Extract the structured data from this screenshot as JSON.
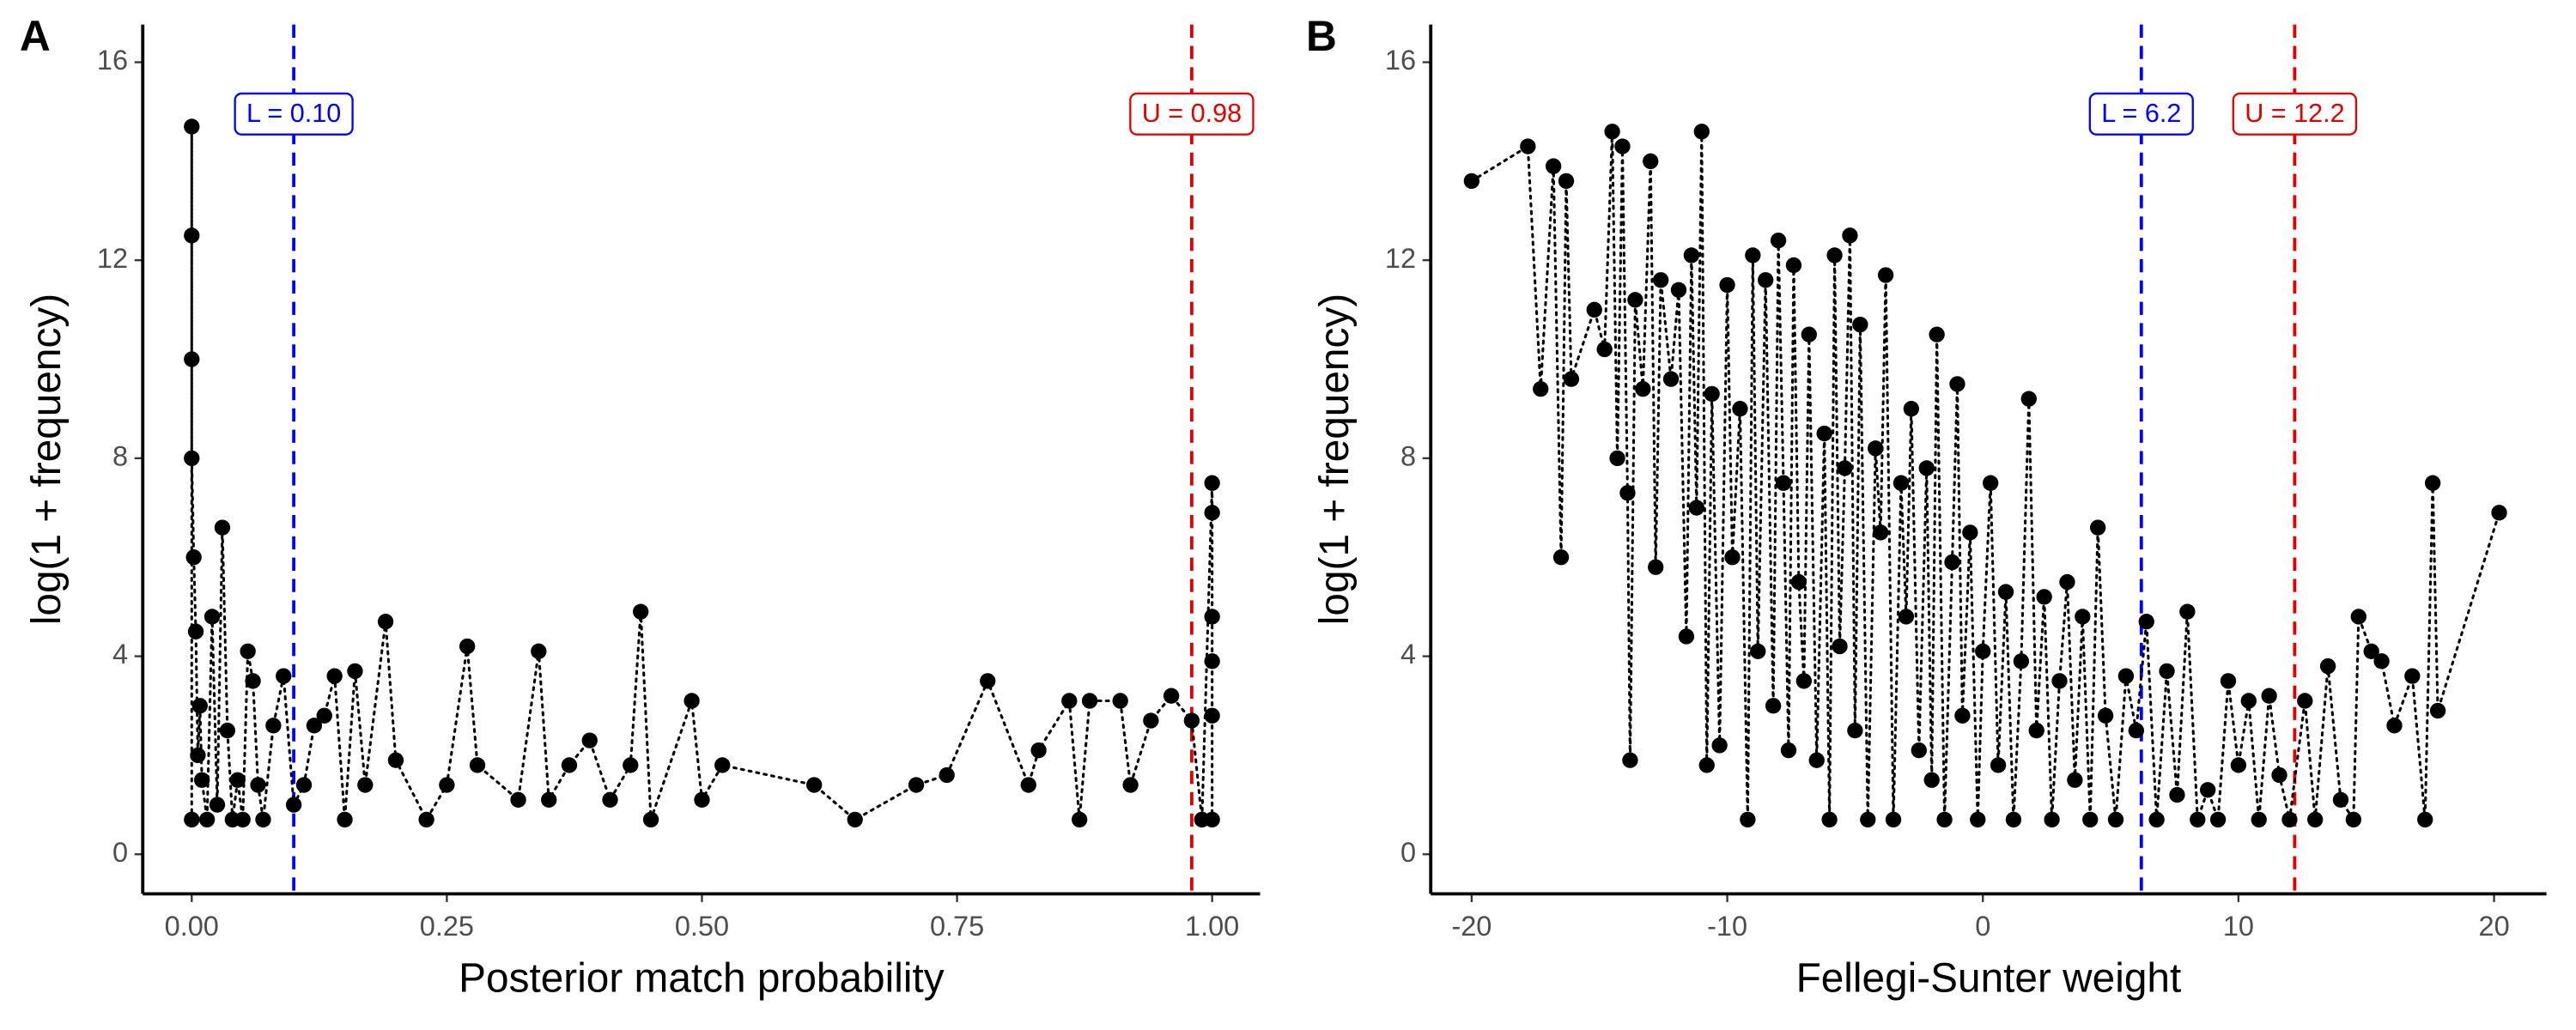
{
  "chart_data": [
    {
      "type": "scatter",
      "panel_label": "A",
      "x_label": "Posterior match probability",
      "y_label": "log(1 + frequency)",
      "color": "#000000",
      "xlim": [
        -0.048,
        1.047
      ],
      "xticks": [
        {
          "value": 0,
          "label": "0.00"
        },
        {
          "value": 0.25,
          "label": "0.25"
        },
        {
          "value": 0.5,
          "label": "0.50"
        },
        {
          "value": 0.75,
          "label": "0.75"
        },
        {
          "value": 1,
          "label": "1.00"
        }
      ],
      "ylim": [
        -0.8,
        16.76
      ],
      "yticks": [
        0,
        4,
        8,
        12,
        16
      ],
      "reference_lines": [
        {
          "value": 0.1,
          "label": "L = 0.10",
          "color": "#0000ff"
        },
        {
          "value": 0.98,
          "label": "U = 0.98",
          "color": "#e00000"
        }
      ],
      "x": [
        0,
        0,
        0,
        0,
        0,
        0.002,
        0.004,
        0.006,
        0.008,
        0.01,
        0.015,
        0.02,
        0.025,
        0.03,
        0.035,
        0.04,
        0.045,
        0.05,
        0.055,
        0.06,
        0.065,
        0.07,
        0.08,
        0.09,
        0.1,
        0.11,
        0.12,
        0.13,
        0.14,
        0.15,
        0.16,
        0.17,
        0.19,
        0.2,
        0.23,
        0.25,
        0.27,
        0.28,
        0.32,
        0.34,
        0.35,
        0.37,
        0.39,
        0.41,
        0.43,
        0.44,
        0.45,
        0.49,
        0.5,
        0.52,
        0.61,
        0.65,
        0.71,
        0.74,
        0.78,
        0.82,
        0.83,
        0.86,
        0.87,
        0.88,
        0.91,
        0.92,
        0.94,
        0.96,
        0.98,
        0.99,
        1,
        1,
        1,
        1,
        1,
        1
      ],
      "values": [
        0.7,
        14.7,
        12.5,
        10,
        8,
        6,
        4.5,
        2,
        3,
        1.5,
        0.7,
        4.8,
        1,
        6.6,
        2.5,
        0.7,
        1.5,
        0.7,
        4.1,
        3.5,
        1.4,
        0.7,
        2.6,
        3.6,
        1,
        1.4,
        2.6,
        2.8,
        3.6,
        0.7,
        3.7,
        1.4,
        4.7,
        1.9,
        0.7,
        1.4,
        4.2,
        1.8,
        1.1,
        4.1,
        1.1,
        1.8,
        2.3,
        1.1,
        1.8,
        4.9,
        0.7,
        3.1,
        1.1,
        1.8,
        1.4,
        0.7,
        1.4,
        1.6,
        3.5,
        1.4,
        2.1,
        3.1,
        0.7,
        3.1,
        3.1,
        1.4,
        2.7,
        3.2,
        2.7,
        0.7,
        7.5,
        6.9,
        4.8,
        3.9,
        2.8,
        0.7
      ]
    },
    {
      "type": "scatter",
      "panel_label": "B",
      "x_label": "Fellegi-Sunter weight",
      "y_label": "log(1 + frequency)",
      "color": "#000000",
      "xlim": [
        -21.6,
        22.05
      ],
      "xticks": [
        -20,
        -10,
        0,
        10,
        20
      ],
      "ylim": [
        -0.8,
        16.76
      ],
      "yticks": [
        0,
        4,
        8,
        12,
        16
      ],
      "reference_lines": [
        {
          "value": 6.2,
          "label": "L = 6.2",
          "color": "#0000ff"
        },
        {
          "value": 12.2,
          "label": "U = 12.2",
          "color": "#e00000"
        }
      ],
      "x": [
        -20,
        -17.8,
        -17.3,
        -16.8,
        -16.5,
        -16.3,
        -16.1,
        -15.2,
        -14.8,
        -14.5,
        -14.3,
        -14.1,
        -13.9,
        -13.8,
        -13.6,
        -13.3,
        -13,
        -12.8,
        -12.6,
        -12.2,
        -11.9,
        -11.6,
        -11.4,
        -11.2,
        -11,
        -10.8,
        -10.6,
        -10.3,
        -10,
        -9.8,
        -9.5,
        -9.2,
        -9,
        -8.8,
        -8.5,
        -8.2,
        -8,
        -7.8,
        -7.6,
        -7.4,
        -7.2,
        -7,
        -6.8,
        -6.5,
        -6.2,
        -6,
        -5.8,
        -5.6,
        -5.4,
        -5.2,
        -5,
        -4.8,
        -4.5,
        -4.2,
        -4,
        -3.8,
        -3.5,
        -3.2,
        -3,
        -2.8,
        -2.5,
        -2.2,
        -2,
        -1.8,
        -1.5,
        -1.2,
        -1,
        -0.8,
        -0.5,
        -0.2,
        0,
        0.3,
        0.6,
        0.9,
        1.2,
        1.5,
        1.8,
        2.1,
        2.4,
        2.7,
        3,
        3.3,
        3.6,
        3.9,
        4.2,
        4.5,
        4.8,
        5.2,
        5.6,
        6,
        6.4,
        6.8,
        7.2,
        7.6,
        8,
        8.4,
        8.8,
        9.2,
        9.6,
        10,
        10.4,
        10.8,
        11.2,
        11.6,
        12,
        12.6,
        13,
        13.5,
        14,
        14.5,
        14.7,
        15.2,
        15.6,
        16.1,
        16.8,
        17.3,
        17.6,
        17.8,
        20.2
      ],
      "values": [
        13.6,
        14.3,
        9.4,
        13.9,
        6,
        13.6,
        9.6,
        11,
        10.2,
        14.6,
        8,
        14.3,
        7.3,
        1.9,
        11.2,
        9.4,
        14,
        5.8,
        11.6,
        9.6,
        11.4,
        4.4,
        12.1,
        7,
        14.6,
        1.8,
        9.3,
        2.2,
        11.5,
        6,
        9,
        0.7,
        12.1,
        4.1,
        11.6,
        3,
        12.4,
        7.5,
        2.1,
        11.9,
        5.5,
        3.5,
        10.5,
        1.9,
        8.5,
        0.7,
        12.1,
        4.2,
        7.8,
        12.5,
        2.5,
        10.7,
        0.7,
        8.2,
        6.5,
        11.7,
        0.7,
        7.5,
        4.8,
        9,
        2.1,
        7.8,
        1.5,
        10.5,
        0.7,
        5.9,
        9.5,
        2.8,
        6.5,
        0.7,
        4.1,
        7.5,
        1.8,
        5.3,
        0.7,
        3.9,
        9.2,
        2.5,
        5.2,
        0.7,
        3.5,
        5.5,
        1.5,
        4.8,
        0.7,
        6.6,
        2.8,
        0.7,
        3.6,
        2.5,
        4.7,
        0.7,
        3.7,
        1.2,
        4.9,
        0.7,
        1.3,
        0.7,
        3.5,
        1.8,
        3.1,
        0.7,
        3.2,
        1.6,
        0.7,
        3.1,
        0.7,
        3.8,
        1.1,
        0.7,
        4.8,
        4.1,
        3.9,
        2.6,
        3.6,
        0.7,
        7.5,
        2.9,
        6.9
      ]
    }
  ]
}
